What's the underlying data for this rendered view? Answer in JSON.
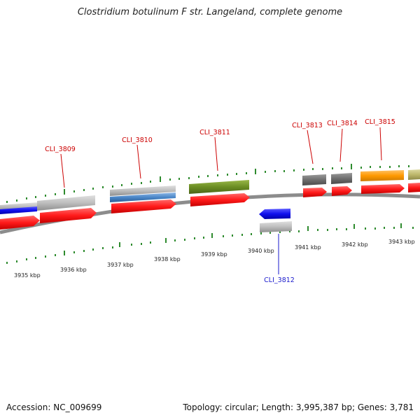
{
  "title": "Clostridium botulinum F str. Langeland, complete genome",
  "footer": {
    "accession": "Accession: NC_009699",
    "summary": "Topology: circular; Length: 3,995,387 bp; Genes: 3,781"
  },
  "scale_labels": [
    "3935 kbp",
    "3936 kbp",
    "3937 kbp",
    "3938 kbp",
    "3939 kbp",
    "3940 kbp",
    "3941 kbp",
    "3942 kbp",
    "3943 kbp"
  ],
  "gene_labels": [
    {
      "name": "CLI_3809",
      "color": "#cc0000"
    },
    {
      "name": "CLI_3810",
      "color": "#cc0000"
    },
    {
      "name": "CLI_3811",
      "color": "#cc0000"
    },
    {
      "name": "CLI_3812",
      "color": "#1a1acc"
    },
    {
      "name": "CLI_3813",
      "color": "#cc0000"
    },
    {
      "name": "CLI_3814",
      "color": "#cc0000"
    },
    {
      "name": "CLI_3815",
      "color": "#cc0000"
    }
  ],
  "colors": {
    "backbone": "#8c8c8c",
    "cds": "#ff1a1a",
    "reverse_cds": "#1010ee",
    "tick": "#2e8b2e",
    "feature_gray": "#bdbdbd",
    "feature_dark": "#6e6e6e",
    "feature_blue": "#4a86c8",
    "feature_green": "#6b8e23",
    "feature_orange": "#ff9900",
    "feature_khaki": "#bdb76b"
  }
}
